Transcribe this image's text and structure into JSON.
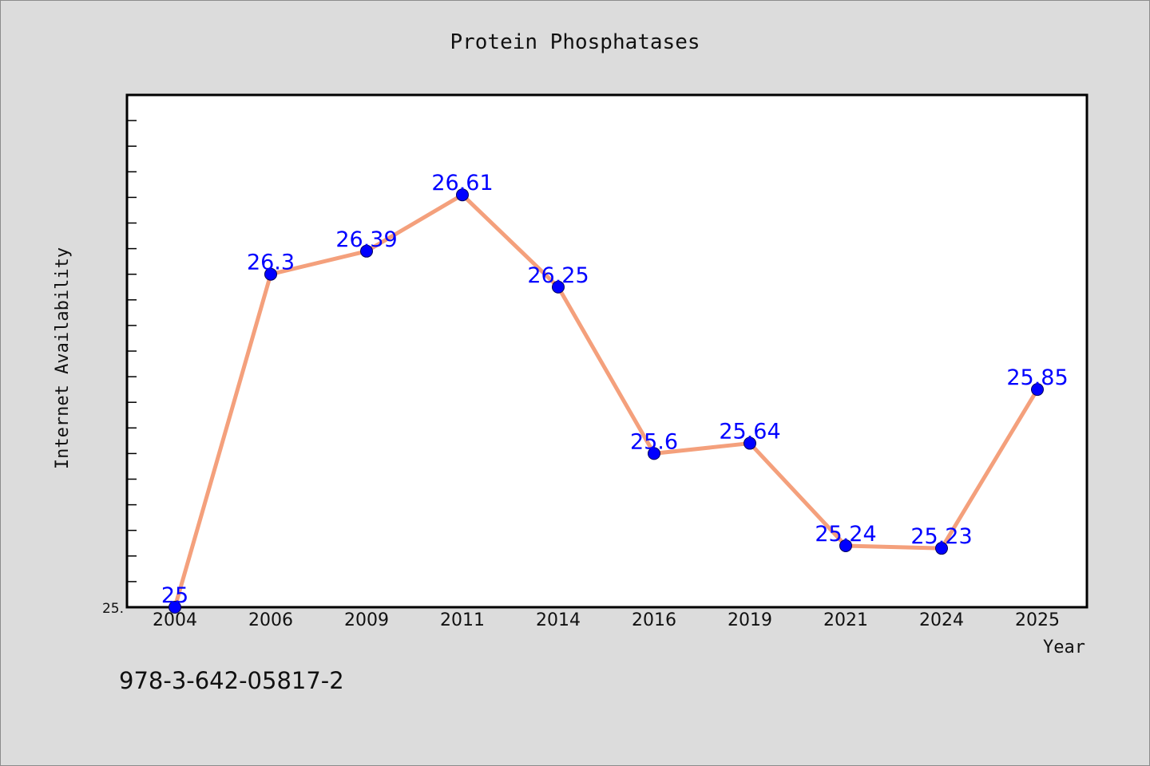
{
  "chart_data": {
    "type": "line",
    "title": "Protein Phosphatases",
    "xlabel": "Year",
    "ylabel": "Internet Availability",
    "categories": [
      "2004",
      "2006",
      "2009",
      "2011",
      "2014",
      "2016",
      "2019",
      "2021",
      "2024",
      "2025"
    ],
    "values": [
      25,
      26.3,
      26.39,
      26.61,
      26.25,
      25.6,
      25.64,
      25.24,
      25.23,
      25.85
    ],
    "data_labels": [
      "25",
      "26.3",
      "26.39",
      "26.61",
      "26.25",
      "25.6",
      "25.64",
      "25.24",
      "25.23",
      "25.85"
    ],
    "ylim": [
      25,
      27
    ],
    "y_tick_labels": [
      "25."
    ],
    "grid": false,
    "legend": "none",
    "line_color": "#f4a07c",
    "marker_color": "#0000ff",
    "label_color": "#0000ff"
  },
  "footer": {
    "code": "978-3-642-05817-2"
  }
}
